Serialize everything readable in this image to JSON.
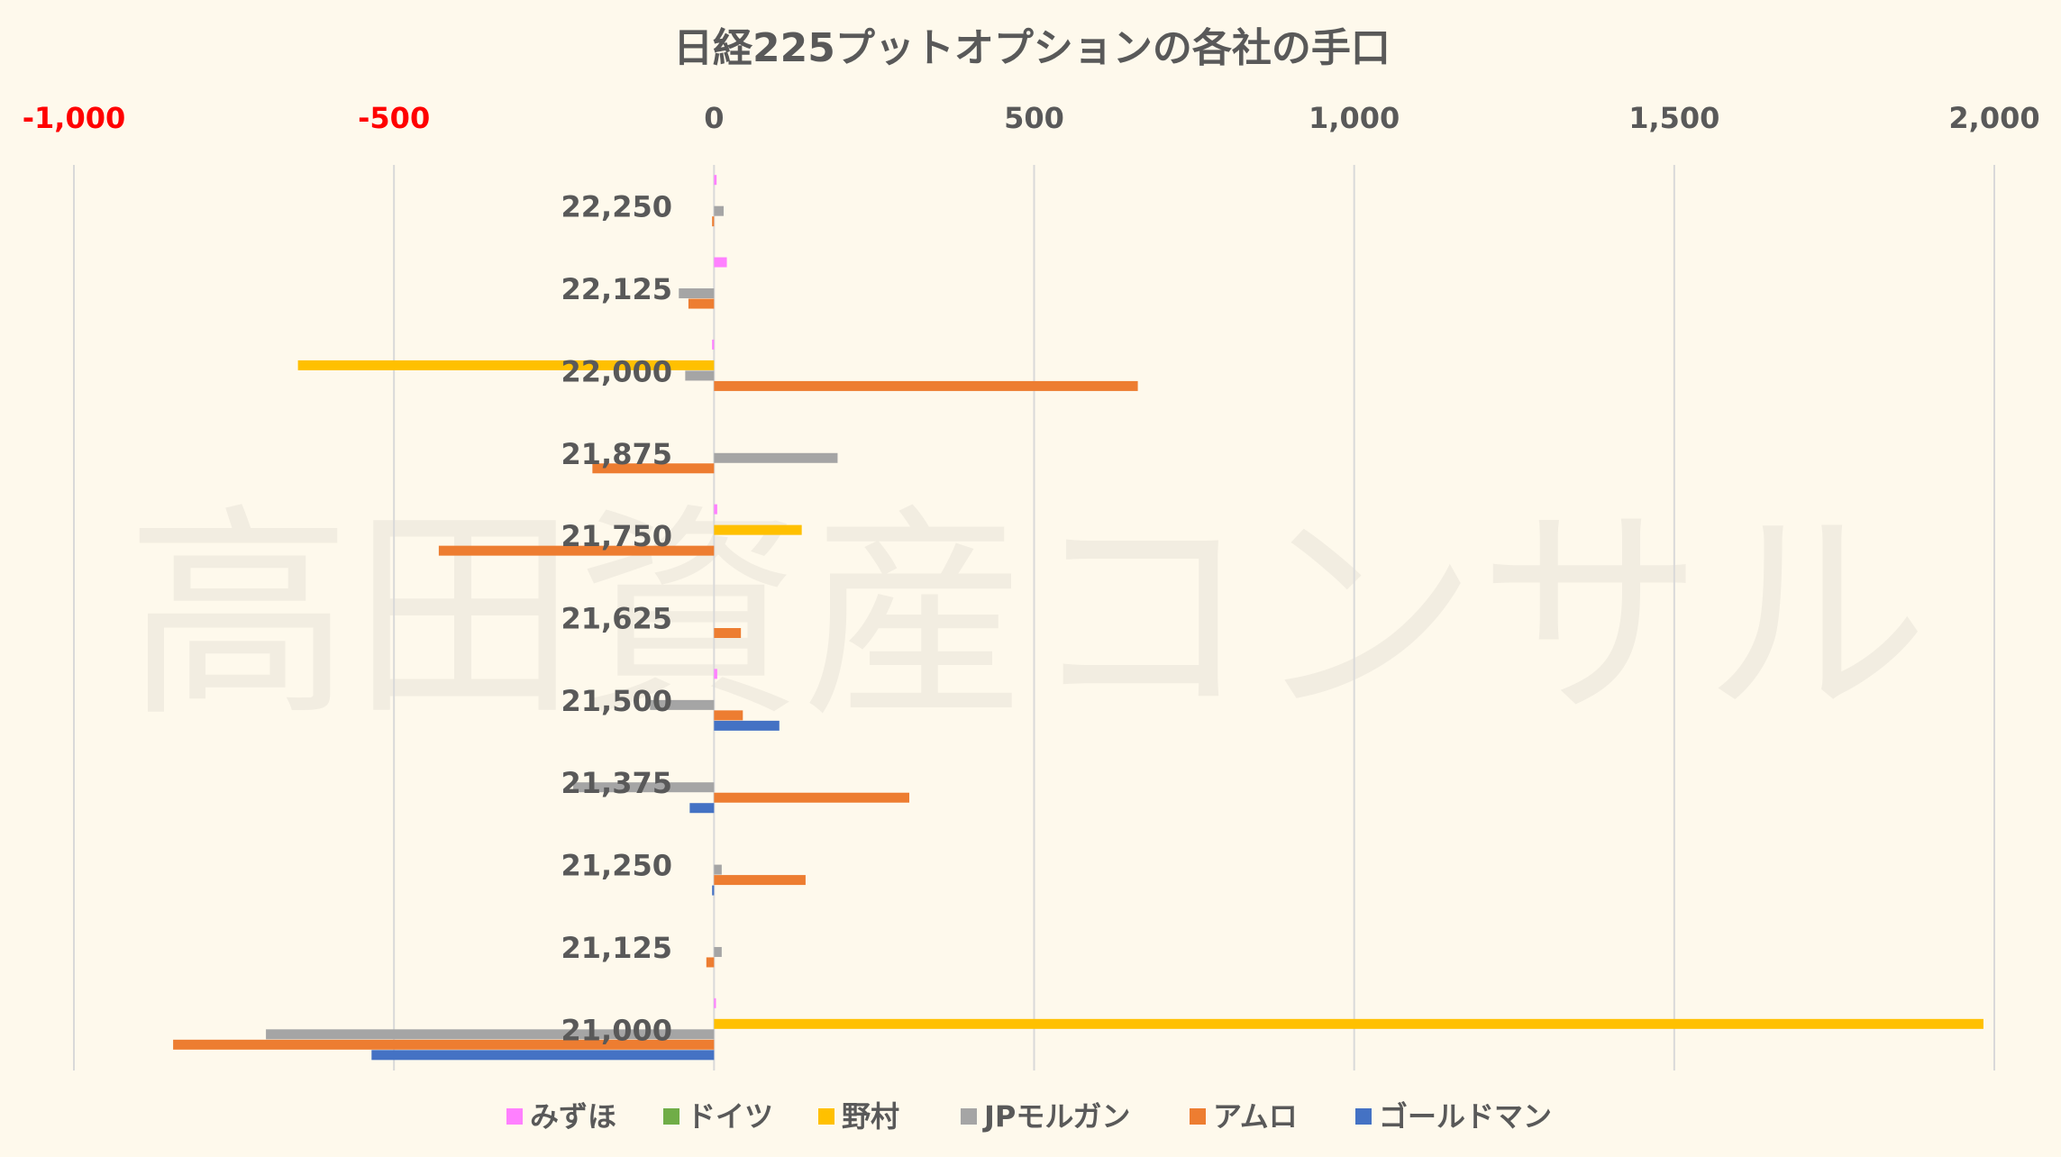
{
  "chart_data": {
    "type": "bar",
    "orientation": "horizontal",
    "title": "日経225プットオプションの各社の手口",
    "watermark": "高田資産コンサル",
    "categories": [
      "22,250",
      "22,125",
      "22,000",
      "21,875",
      "21,750",
      "21,625",
      "21,500",
      "21,375",
      "21,250",
      "21,125",
      "21,000"
    ],
    "xlim": [
      -1000,
      2000
    ],
    "xticks": [
      {
        "value": -1000,
        "label": "-1,000",
        "negative": true
      },
      {
        "value": -500,
        "label": "-500",
        "negative": true
      },
      {
        "value": 0,
        "label": "0",
        "negative": false
      },
      {
        "value": 500,
        "label": "500",
        "negative": false
      },
      {
        "value": 1000,
        "label": "1,000",
        "negative": false
      },
      {
        "value": 1500,
        "label": "1,500",
        "negative": false
      },
      {
        "value": 2000,
        "label": "2,000",
        "negative": false
      }
    ],
    "grid": true,
    "legend_position": "bottom",
    "series": [
      {
        "name": "みずほ",
        "color": "#ff80ff",
        "values": [
          4,
          20,
          -3,
          0,
          5,
          0,
          5,
          0,
          0,
          0,
          3
        ]
      },
      {
        "name": "ドイツ",
        "color": "#70ad47",
        "values": [
          0,
          0,
          0,
          0,
          0,
          0,
          0,
          0,
          0,
          0,
          0
        ]
      },
      {
        "name": "野村",
        "color": "#ffc000",
        "values": [
          0,
          0,
          -650,
          0,
          137,
          0,
          0,
          0,
          0,
          0,
          1983
        ]
      },
      {
        "name": "JPモルガン",
        "color": "#a5a5a5",
        "values": [
          15,
          -55,
          -45,
          193,
          0,
          0,
          -100,
          -220,
          12,
          12,
          -700
        ]
      },
      {
        "name": "アムロ",
        "color": "#ed7d31",
        "values": [
          -3,
          -40,
          662,
          -190,
          -430,
          42,
          45,
          305,
          143,
          -12,
          -845
        ]
      },
      {
        "name": "ゴールドマン",
        "color": "#4472c4",
        "values": [
          0,
          0,
          0,
          0,
          0,
          0,
          102,
          -38,
          -3,
          0,
          -535
        ]
      }
    ],
    "colors": {
      "negative_tick": "#ff0000",
      "tick": "#595959",
      "grid": "#d9d9d9"
    }
  }
}
